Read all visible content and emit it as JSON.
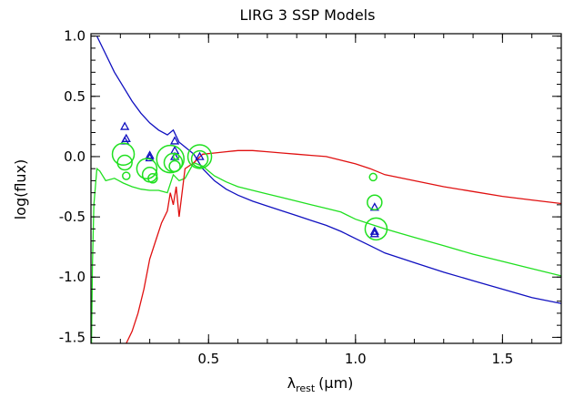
{
  "chart_data": {
    "type": "line",
    "title": "LIRG 3 SSP Models",
    "xlabel": "λ_rest (μm)",
    "xlabel_parts": {
      "lambda": "λ",
      "sub": "rest",
      "unit": "(μm)"
    },
    "ylabel": "log(flux)",
    "xlim": [
      0.1,
      1.7
    ],
    "ylim": [
      -1.55,
      1.02
    ],
    "xticks": [
      0.5,
      1.0,
      1.5
    ],
    "xtick_labels": [
      "0.5",
      "1.0",
      "1.5"
    ],
    "yticks": [
      1.0,
      0.5,
      0.0,
      -0.5,
      -1.0,
      -1.5
    ],
    "ytick_labels": [
      "1.0",
      "0.5",
      "0.0",
      "-0.5",
      "-1.0",
      "-1.5"
    ],
    "grid": false,
    "colors": {
      "blue": "#1010c0",
      "green": "#20e020",
      "red": "#e01010",
      "axes": "#000000"
    },
    "series": [
      {
        "color": "blue",
        "kind": "line",
        "x": [
          0.12,
          0.15,
          0.18,
          0.21,
          0.24,
          0.27,
          0.3,
          0.33,
          0.36,
          0.38,
          0.4,
          0.42,
          0.45,
          0.48,
          0.52,
          0.56,
          0.6,
          0.65,
          0.7,
          0.75,
          0.8,
          0.85,
          0.9,
          0.95,
          1.0,
          1.05,
          1.1,
          1.2,
          1.3,
          1.4,
          1.5,
          1.6,
          1.7
        ],
        "y": [
          1.0,
          0.85,
          0.7,
          0.58,
          0.46,
          0.36,
          0.28,
          0.22,
          0.18,
          0.22,
          0.12,
          0.08,
          0.02,
          -0.1,
          -0.2,
          -0.27,
          -0.32,
          -0.37,
          -0.41,
          -0.45,
          -0.49,
          -0.53,
          -0.57,
          -0.62,
          -0.68,
          -0.74,
          -0.8,
          -0.88,
          -0.96,
          -1.03,
          -1.1,
          -1.17,
          -1.22
        ]
      },
      {
        "color": "green",
        "kind": "line",
        "x": [
          0.102,
          0.105,
          0.11,
          0.12,
          0.13,
          0.15,
          0.18,
          0.21,
          0.24,
          0.27,
          0.3,
          0.33,
          0.36,
          0.38,
          0.4,
          0.42,
          0.45,
          0.48,
          0.52,
          0.56,
          0.6,
          0.65,
          0.7,
          0.75,
          0.8,
          0.85,
          0.9,
          0.95,
          1.0,
          1.05,
          1.1,
          1.2,
          1.3,
          1.4,
          1.5,
          1.6,
          1.7
        ],
        "y": [
          -1.55,
          -0.9,
          -0.4,
          -0.1,
          -0.12,
          -0.2,
          -0.18,
          -0.22,
          -0.25,
          -0.27,
          -0.28,
          -0.28,
          -0.3,
          -0.15,
          -0.2,
          -0.18,
          -0.05,
          -0.08,
          -0.16,
          -0.21,
          -0.25,
          -0.28,
          -0.31,
          -0.34,
          -0.37,
          -0.4,
          -0.43,
          -0.46,
          -0.52,
          -0.56,
          -0.6,
          -0.67,
          -0.74,
          -0.81,
          -0.87,
          -0.93,
          -0.99
        ]
      },
      {
        "color": "red",
        "kind": "line",
        "x": [
          0.22,
          0.24,
          0.26,
          0.28,
          0.3,
          0.32,
          0.34,
          0.36,
          0.37,
          0.38,
          0.39,
          0.4,
          0.42,
          0.45,
          0.48,
          0.52,
          0.56,
          0.6,
          0.65,
          0.7,
          0.75,
          0.8,
          0.85,
          0.9,
          0.95,
          1.0,
          1.05,
          1.1,
          1.2,
          1.3,
          1.4,
          1.5,
          1.6,
          1.7
        ],
        "y": [
          -1.55,
          -1.45,
          -1.3,
          -1.1,
          -0.85,
          -0.7,
          -0.55,
          -0.45,
          -0.3,
          -0.4,
          -0.25,
          -0.5,
          -0.1,
          -0.05,
          0.02,
          0.03,
          0.04,
          0.05,
          0.05,
          0.04,
          0.03,
          0.02,
          0.01,
          0.0,
          -0.03,
          -0.06,
          -0.1,
          -0.15,
          -0.2,
          -0.25,
          -0.29,
          -0.33,
          -0.36,
          -0.39
        ]
      },
      {
        "color": "blue",
        "kind": "triangles",
        "x": [
          0.215,
          0.22,
          0.215,
          0.3,
          0.3,
          0.385,
          0.385,
          0.385,
          0.47,
          1.065,
          1.065,
          1.065
        ],
        "y": [
          0.25,
          0.15,
          0.13,
          0.01,
          -0.01,
          0.13,
          0.05,
          0.0,
          0.0,
          -0.42,
          -0.62,
          -0.64
        ]
      },
      {
        "color": "green",
        "kind": "circles",
        "x": [
          0.21,
          0.215,
          0.22,
          0.29,
          0.3,
          0.31,
          0.37,
          0.38,
          0.385,
          0.39,
          0.47,
          0.47,
          1.06,
          1.065,
          1.07
        ],
        "y": [
          0.02,
          -0.05,
          -0.16,
          -0.1,
          -0.15,
          -0.18,
          -0.02,
          -0.05,
          -0.08,
          0.0,
          0.0,
          -0.02,
          -0.17,
          -0.38,
          -0.6
        ],
        "sizes": [
          12,
          8,
          4,
          11,
          8,
          5,
          15,
          10,
          6,
          3,
          13,
          9,
          4,
          8,
          12
        ]
      }
    ]
  }
}
